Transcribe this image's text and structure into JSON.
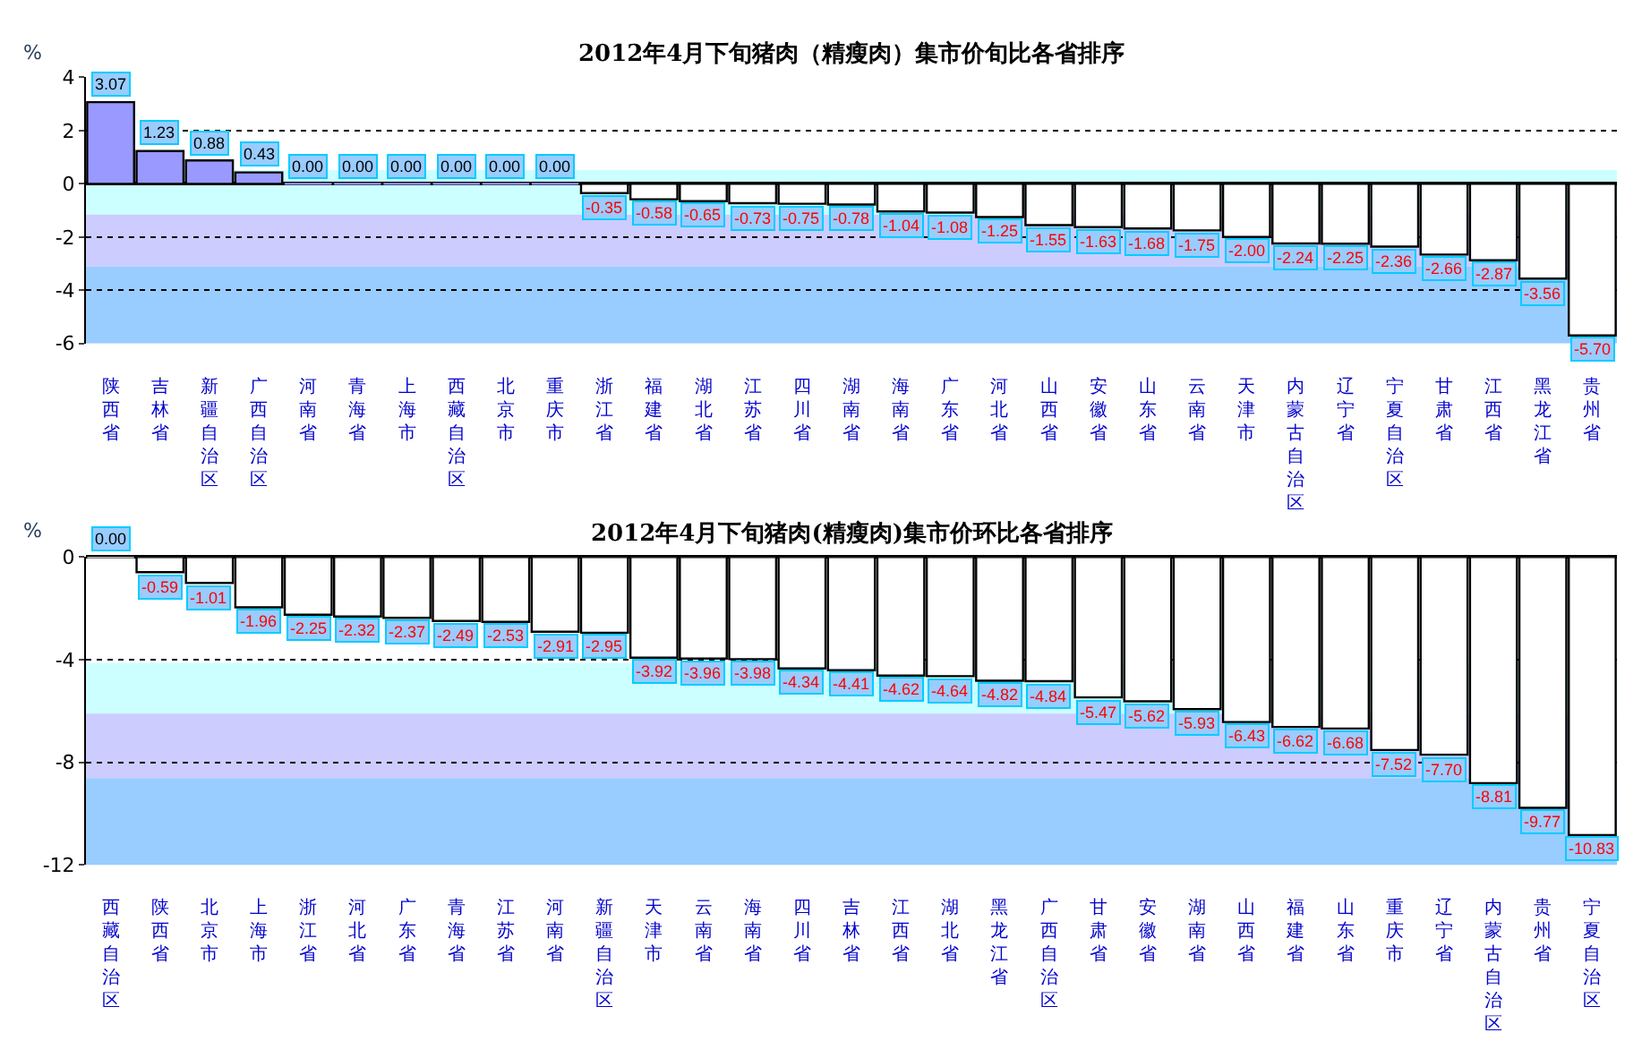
{
  "chart_data": [
    {
      "type": "bar",
      "title": "2012年4月下旬猪肉（精瘦肉）集市价旬比各省排序",
      "ylabel": "%",
      "categories": [
        "陕西省",
        "吉林省",
        "新疆自治区",
        "广西自治区",
        "河南省",
        "青海省",
        "上海市",
        "西藏自治区",
        "北京市",
        "重庆市",
        "浙江省",
        "福建省",
        "湖北省",
        "江苏省",
        "四川省",
        "湖南省",
        "海南省",
        "广东省",
        "河北省",
        "山西省",
        "安徽省",
        "山东省",
        "云南省",
        "天津市",
        "内蒙古自治区",
        "辽宁省",
        "宁夏自治区",
        "甘肃省",
        "江西省",
        "黑龙江省",
        "贵州省"
      ],
      "values": [
        3.07,
        1.23,
        0.88,
        0.43,
        0,
        0,
        0,
        0,
        0,
        0,
        -0.35,
        -0.58,
        -0.65,
        -0.73,
        -0.75,
        -0.78,
        -1.04,
        -1.08,
        -1.25,
        -1.55,
        -1.63,
        -1.68,
        -1.75,
        -2.0,
        -2.24,
        -2.25,
        -2.36,
        -2.66,
        -2.87,
        -3.56,
        -5.7
      ],
      "value_labels": [
        "3.07",
        "1.23",
        "0.88",
        "0.43",
        "0.00",
        "0.00",
        "0.00",
        "0.00",
        "0.00",
        "0.00",
        "-0.35",
        "-0.58",
        "-0.65",
        "-0.73",
        "-0.75",
        "-0.78",
        "-1.04",
        "-1.08",
        "-1.25",
        "-1.55",
        "-1.63",
        "-1.68",
        "-1.75",
        "-2.00",
        "-2.24",
        "-2.25",
        "-2.36",
        "-2.66",
        "-2.87",
        "-3.56",
        "-5.70"
      ],
      "colors": [
        "#9999ff",
        "#9999ff",
        "#9999ff",
        "#9999ff",
        "#9999ff",
        "#9999ff",
        "#9999ff",
        "#9999ff",
        "#9999ff",
        "#9999ff",
        "#ffffff",
        "#ffffff",
        "#ffffff",
        "#ffffff",
        "#ffffff",
        "#ffffff",
        "#ffffff",
        "#ffffff",
        "#ffffff",
        "#ffffff",
        "#ffffff",
        "#ffffff",
        "#ffffff",
        "#ffffff",
        "#ffffff",
        "#ffffff",
        "#ffffff",
        "#ffffff",
        "#ffffff",
        "#ffffff",
        "#ffffff"
      ],
      "ylim": [
        -6,
        4
      ],
      "yticks": [
        -6,
        -4,
        -2,
        0,
        2,
        4
      ],
      "grid": "y",
      "bands": [
        {
          "axis": "y",
          "from": 0.52,
          "to": -1.16,
          "color": "#ccffff"
        },
        {
          "axis": "y",
          "from": -1.16,
          "to": -3.11,
          "color": "#ccccff"
        },
        {
          "axis": "y",
          "from": -3.11,
          "to": -6,
          "color": "#99ccff"
        }
      ]
    },
    {
      "type": "bar",
      "title": "2012年4月下旬猪肉(精瘦肉)集市价环比各省排序",
      "ylabel": "%",
      "categories": [
        "西藏自治区",
        "陕西省",
        "北京市",
        "上海市",
        "浙江省",
        "河北省",
        "广东省",
        "青海省",
        "江苏省",
        "河南省",
        "新疆自治区",
        "天津市",
        "云南省",
        "海南省",
        "四川省",
        "吉林省",
        "江西省",
        "湖北省",
        "黑龙江省",
        "广西自治区",
        "甘肃省",
        "安徽省",
        "湖南省",
        "山西省",
        "福建省",
        "山东省",
        "重庆市",
        "辽宁省",
        "内蒙古自治区",
        "贵州省",
        "宁夏自治区"
      ],
      "values": [
        0,
        -0.59,
        -1.01,
        -1.96,
        -2.25,
        -2.32,
        -2.37,
        -2.49,
        -2.53,
        -2.91,
        -2.95,
        -3.92,
        -3.96,
        -3.98,
        -4.34,
        -4.41,
        -4.62,
        -4.64,
        -4.82,
        -4.84,
        -5.47,
        -5.62,
        -5.93,
        -6.43,
        -6.62,
        -6.68,
        -7.52,
        -7.7,
        -8.81,
        -9.77,
        -10.83
      ],
      "value_labels": [
        "0.00",
        "-0.59",
        "-1.01",
        "-1.96",
        "-2.25",
        "-2.32",
        "-2.37",
        "-2.49",
        "-2.53",
        "-2.91",
        "-2.95",
        "-3.92",
        "-3.96",
        "-3.98",
        "-4.34",
        "-4.41",
        "-4.62",
        "-4.64",
        "-4.82",
        "-4.84",
        "-5.47",
        "-5.62",
        "-5.93",
        "-6.43",
        "-6.62",
        "-6.68",
        "-7.52",
        "-7.70",
        "-8.81",
        "-9.77",
        "-10.83"
      ],
      "colors": [
        "#ffffff",
        "#ffffff",
        "#ffffff",
        "#ffffff",
        "#ffffff",
        "#ffffff",
        "#ffffff",
        "#ffffff",
        "#ffffff",
        "#ffffff",
        "#ffffff",
        "#ffffff",
        "#ffffff",
        "#ffffff",
        "#ffffff",
        "#ffffff",
        "#ffffff",
        "#ffffff",
        "#ffffff",
        "#ffffff",
        "#ffffff",
        "#ffffff",
        "#ffffff",
        "#ffffff",
        "#ffffff",
        "#ffffff",
        "#ffffff",
        "#ffffff",
        "#ffffff",
        "#ffffff",
        "#ffffff"
      ],
      "ylim": [
        -12,
        0
      ],
      "yticks": [
        -12,
        -8,
        -4,
        0
      ],
      "grid": "y",
      "bands": [
        {
          "axis": "y",
          "from": -4.13,
          "to": -6.1,
          "color": "#ccffff"
        },
        {
          "axis": "y",
          "from": -6.1,
          "to": -8.61,
          "color": "#ccccff"
        },
        {
          "axis": "y",
          "from": -8.61,
          "to": -12,
          "color": "#99ccff"
        }
      ]
    }
  ]
}
